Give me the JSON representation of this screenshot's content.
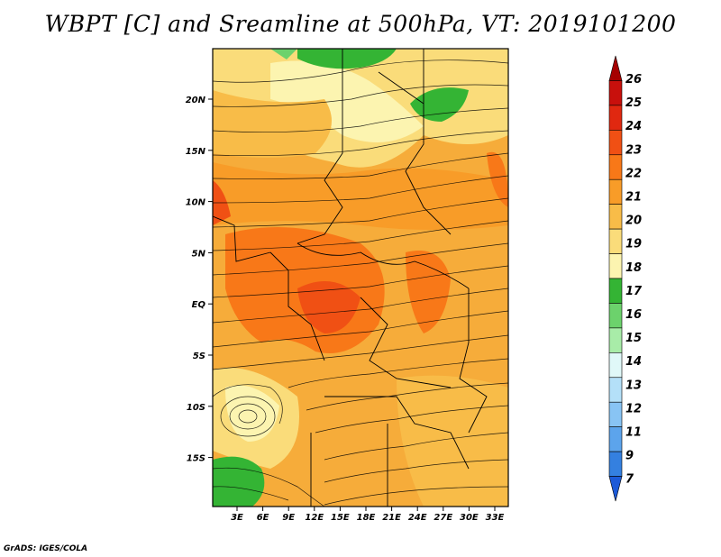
{
  "title": "WBPT [C] and Sreamline at 500hPa, VT: 2019101200",
  "footer": "GrADS: IGES/COLA",
  "map": {
    "lat_ticks": [
      "20N",
      "15N",
      "10N",
      "5N",
      "EQ",
      "5S",
      "10S",
      "15S"
    ],
    "lon_ticks": [
      "3E",
      "6E",
      "9E",
      "12E",
      "15E",
      "18E",
      "21E",
      "24E",
      "27E",
      "30E",
      "33E"
    ]
  },
  "colorbar": {
    "labels": [
      "26",
      "25",
      "24",
      "23",
      "22",
      "21",
      "20",
      "19",
      "18",
      "17",
      "16",
      "15",
      "14",
      "13",
      "12",
      "11",
      "9",
      "7"
    ],
    "colors": [
      "#a50000",
      "#c8100c",
      "#e02810",
      "#f05014",
      "#f87818",
      "#f89c28",
      "#f8bc48",
      "#fadc7a",
      "#fcf4b0",
      "#34b434",
      "#6cd26c",
      "#a8eca8",
      "#e0f8f8",
      "#b4e0f8",
      "#88c4f4",
      "#5ca4ec",
      "#3480e0",
      "#1c5ad8"
    ]
  }
}
